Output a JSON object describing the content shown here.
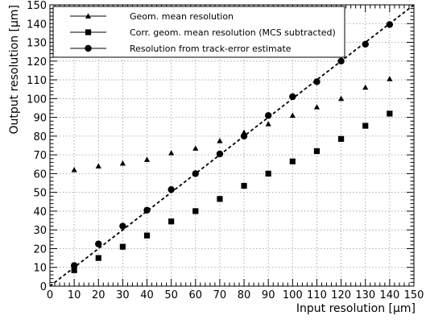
{
  "chart_data": {
    "type": "scatter",
    "xlabel": "Input resolution [μm]",
    "ylabel": "Output resolution [μm]",
    "xlim": [
      0,
      150
    ],
    "ylim": [
      0,
      150
    ],
    "x_ticks": [
      0,
      10,
      20,
      30,
      40,
      50,
      60,
      70,
      80,
      90,
      100,
      110,
      120,
      130,
      140,
      150
    ],
    "y_ticks": [
      0,
      10,
      20,
      30,
      40,
      50,
      60,
      70,
      80,
      90,
      100,
      110,
      120,
      130,
      140,
      150
    ],
    "grid": true,
    "legend_position": "top-left",
    "reference_line": {
      "style": "dashed",
      "x": [
        0,
        150
      ],
      "y": [
        0,
        150
      ]
    },
    "x": [
      10,
      20,
      30,
      40,
      50,
      60,
      70,
      80,
      90,
      100,
      110,
      120,
      130,
      140
    ],
    "series": [
      {
        "name": "Geom. mean resolution",
        "marker": "triangle",
        "values": [
          62,
          64,
          65.5,
          67.5,
          71,
          73.5,
          77.5,
          82,
          86.5,
          91,
          95.5,
          100,
          106,
          110.5
        ]
      },
      {
        "name": "Corr. geom. mean resolution (MCS subtracted)",
        "marker": "square",
        "values": [
          8.5,
          15,
          21,
          27,
          34.5,
          40,
          46.5,
          53.5,
          60,
          66.5,
          72,
          78.5,
          85.5,
          92
        ]
      },
      {
        "name": "Resolution from track-error estimate",
        "marker": "circle",
        "values": [
          11,
          22.5,
          32,
          40.5,
          51.5,
          60,
          70.5,
          80,
          91,
          101,
          109,
          120,
          129,
          139.5
        ]
      }
    ]
  }
}
